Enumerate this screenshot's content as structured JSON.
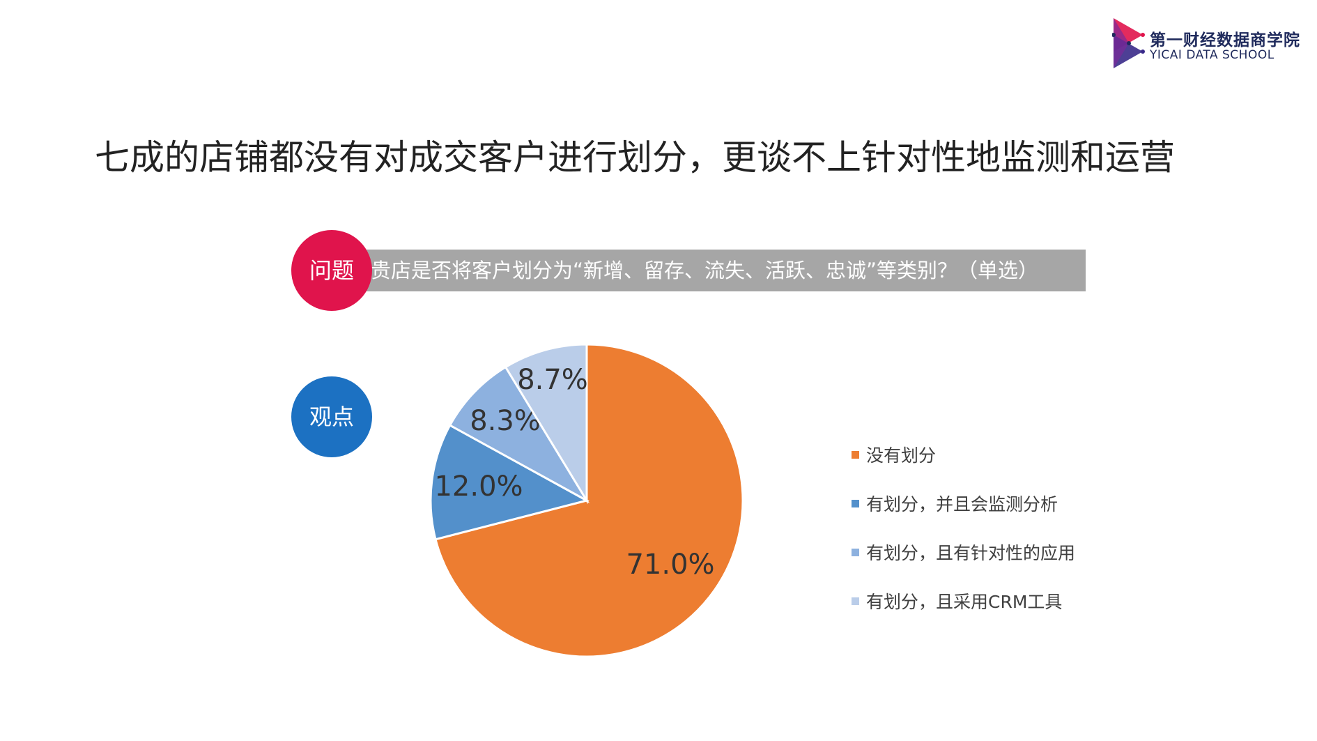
{
  "logo": {
    "name_cn": "第一财经数据商学院",
    "name_en": "YICAI DATA SCHOOL"
  },
  "title": "七成的店铺都没有对成交客户进行划分，更谈不上针对性地监测和运营",
  "question": {
    "badge": "问题",
    "text": "贵店是否将客户划分为“新增、留存、流失、活跃、忠诚”等类别？（单选）"
  },
  "viewpoint": {
    "badge": "观点"
  },
  "colors": {
    "question_badge": "#e0144c",
    "viewpoint_badge": "#1c71c2",
    "question_bar": "#a6a6a6"
  },
  "chart_data": {
    "type": "pie",
    "title": "",
    "legend_position": "right",
    "start_angle_deg": 0,
    "direction": "clockwise",
    "slices": [
      {
        "label": "没有划分",
        "value": 71.0,
        "display": "71.0%",
        "color": "#ed7d31"
      },
      {
        "label": "有划分，并且会监测分析",
        "value": 12.0,
        "display": "12.0%",
        "color": "#5390cb"
      },
      {
        "label": "有划分，且有针对性的应用",
        "value": 8.3,
        "display": "8.3%",
        "color": "#8db1df"
      },
      {
        "label": "有划分，且采用CRM工具",
        "value": 8.7,
        "display": "8.7%",
        "color": "#bacde9"
      }
    ]
  }
}
